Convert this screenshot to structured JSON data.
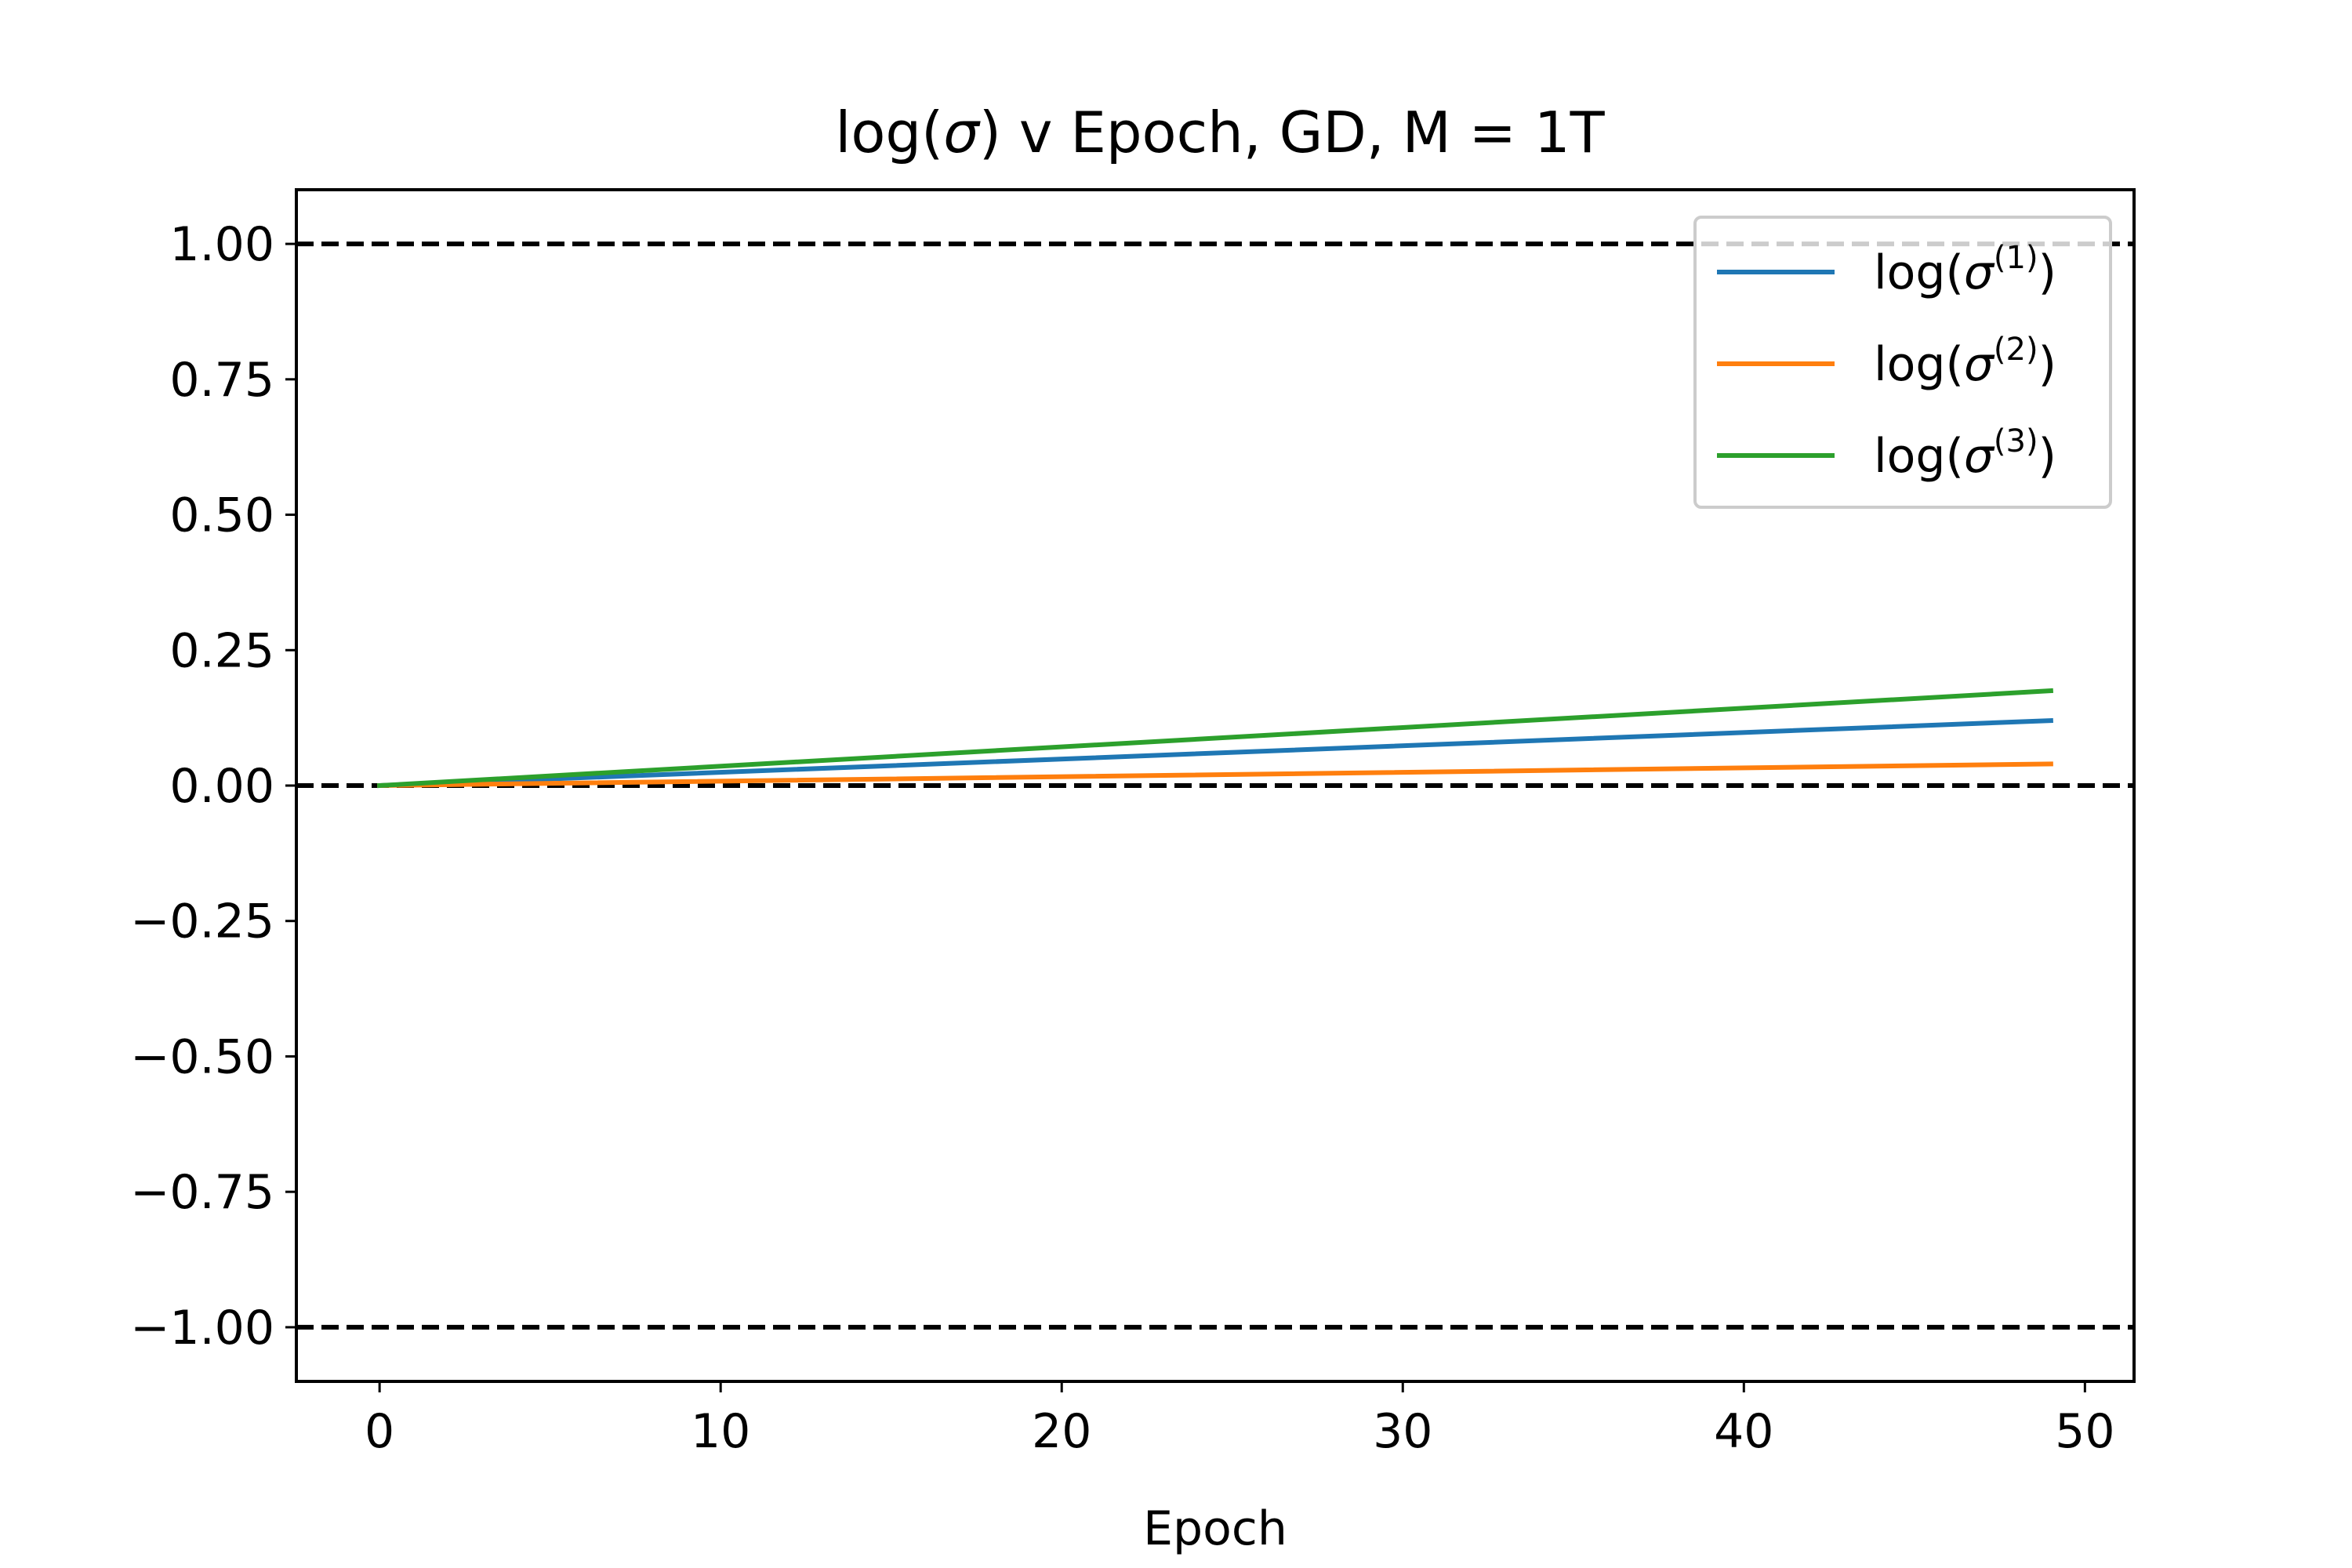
{
  "chart_data": {
    "type": "line",
    "title": {
      "prefix": "log(",
      "sigma": "σ",
      "suffix": ") v Epoch, GD, M = 1T"
    },
    "xlabel": "Epoch",
    "ylabel": "",
    "xlim": [
      -2.44,
      51.44
    ],
    "ylim": [
      -1.1,
      1.1
    ],
    "xticks": [
      0,
      10,
      20,
      30,
      40,
      50
    ],
    "xtick_labels": [
      "0",
      "10",
      "20",
      "30",
      "40",
      "50"
    ],
    "yticks": [
      1.0,
      0.75,
      0.5,
      0.25,
      0.0,
      -0.25,
      -0.5,
      -0.75,
      -1.0
    ],
    "ytick_labels": [
      "1.00",
      "0.75",
      "0.50",
      "0.25",
      "0.00",
      "−0.25",
      "−0.50",
      "−0.75",
      "−1.00"
    ],
    "reference_lines": [
      1.0,
      0.0,
      -1.0
    ],
    "grid": false,
    "legend_position": "top-right",
    "series": [
      {
        "name": "log(σ(1))",
        "base": "log(",
        "sigma": "σ",
        "sup": "(1)",
        "close": ")",
        "color": "#1f77b4",
        "x": [
          0,
          49
        ],
        "y": [
          0.0,
          0.12
        ]
      },
      {
        "name": "log(σ(2))",
        "base": "log(",
        "sigma": "σ",
        "sup": "(2)",
        "close": ")",
        "color": "#ff7f0e",
        "x": [
          0,
          49
        ],
        "y": [
          0.0,
          0.04
        ]
      },
      {
        "name": "log(σ(3))",
        "base": "log(",
        "sigma": "σ",
        "sup": "(3)",
        "close": ")",
        "color": "#2ca02c",
        "x": [
          0,
          49
        ],
        "y": [
          0.0,
          0.175
        ]
      }
    ]
  }
}
